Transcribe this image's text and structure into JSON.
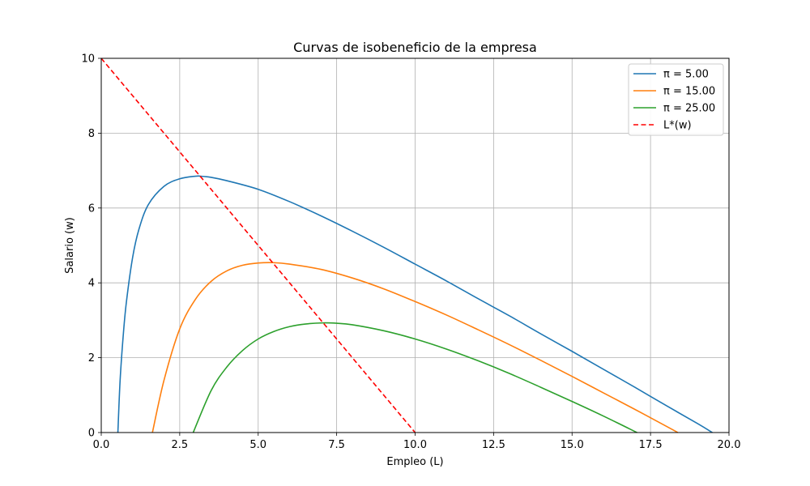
{
  "chart_data": {
    "type": "line",
    "title": "Curvas de isobeneficio de la empresa",
    "xlabel": "Empleo (L)",
    "ylabel": "Salario (w)",
    "xlim": [
      0,
      20
    ],
    "ylim": [
      0,
      10
    ],
    "grid": true,
    "legend_position": "top-right",
    "x_ticks": [
      "0.0",
      "2.5",
      "5.0",
      "7.5",
      "10.0",
      "12.5",
      "15.0",
      "17.5",
      "20.0"
    ],
    "y_ticks": [
      "0",
      "2",
      "4",
      "6",
      "8",
      "10"
    ],
    "series": [
      {
        "name": "π = 5.00",
        "color": "#1f77b4",
        "style": "solid",
        "x": [
          0.53,
          0.6,
          0.7,
          0.8,
          1.0,
          1.2,
          1.5,
          2.0,
          2.5,
          3.0,
          3.16,
          3.5,
          4.0,
          5.0,
          6.0,
          7.0,
          8.0,
          9.0,
          10.0,
          11.0,
          12.0,
          13.0,
          14.0,
          15.0,
          16.0,
          17.0,
          18.0,
          19.0,
          19.47
        ],
        "y": [
          0.0,
          1.38,
          2.59,
          3.48,
          4.68,
          5.43,
          6.09,
          6.58,
          6.78,
          6.85,
          6.85,
          6.82,
          6.73,
          6.5,
          6.17,
          5.79,
          5.38,
          4.95,
          4.5,
          4.05,
          3.58,
          3.12,
          2.64,
          2.17,
          1.69,
          1.21,
          0.72,
          0.24,
          0.0
        ]
      },
      {
        "name": "π = 15.00",
        "color": "#ff7f0e",
        "style": "solid",
        "x": [
          1.63,
          2.0,
          2.5,
          3.0,
          3.5,
          4.0,
          4.5,
          5.0,
          5.48,
          6.0,
          7.0,
          8.0,
          9.0,
          10.0,
          11.0,
          12.0,
          13.0,
          14.0,
          15.0,
          16.0,
          17.0,
          18.0,
          18.37
        ],
        "y": [
          0.0,
          1.4,
          2.77,
          3.56,
          4.04,
          4.32,
          4.47,
          4.53,
          4.54,
          4.5,
          4.36,
          4.13,
          3.84,
          3.5,
          3.14,
          2.75,
          2.35,
          1.93,
          1.5,
          1.06,
          0.62,
          0.17,
          0.0
        ]
      },
      {
        "name": "π = 25.00",
        "color": "#2ca02c",
        "style": "solid",
        "x": [
          2.93,
          3.5,
          4.0,
          4.5,
          5.0,
          5.5,
          6.0,
          6.5,
          7.07,
          7.5,
          8.0,
          9.0,
          10.0,
          11.0,
          12.0,
          13.0,
          14.0,
          15.0,
          16.0,
          17.07
        ],
        "y": [
          0.0,
          1.12,
          1.75,
          2.19,
          2.5,
          2.7,
          2.83,
          2.9,
          2.93,
          2.92,
          2.88,
          2.72,
          2.5,
          2.23,
          1.92,
          1.58,
          1.21,
          0.83,
          0.44,
          0.0
        ]
      },
      {
        "name": "L*(w)",
        "color": "#ff0000",
        "style": "dashed",
        "x": [
          0,
          10
        ],
        "y": [
          10,
          0
        ]
      }
    ]
  }
}
